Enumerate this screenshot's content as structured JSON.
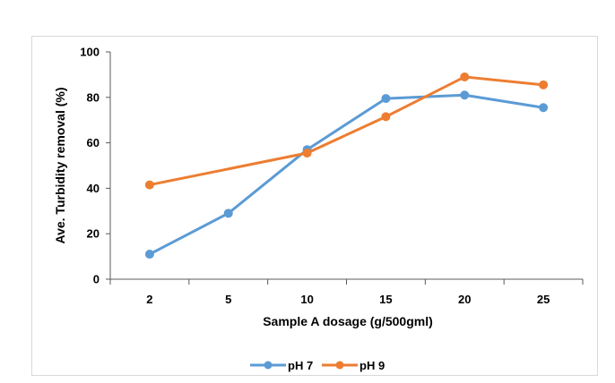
{
  "chart_data": {
    "type": "line",
    "categories": [
      "2",
      "5",
      "10",
      "15",
      "20",
      "25"
    ],
    "series": [
      {
        "name": "pH 7",
        "values": [
          11,
          29,
          57,
          79.5,
          81,
          75.5
        ],
        "color": "#5b9bd5"
      },
      {
        "name": "pH 9",
        "values": [
          41.5,
          null,
          55.5,
          71.5,
          89,
          85.5
        ],
        "color": "#ed7d31"
      }
    ],
    "xlabel": "Sample A dosage (g/500gml)",
    "ylabel": "Ave. Turbidity removal (%)",
    "ylim": [
      0,
      100
    ],
    "yticks": [
      0,
      20,
      40,
      60,
      80,
      100
    ],
    "grid": false,
    "legend_position": "bottom"
  }
}
